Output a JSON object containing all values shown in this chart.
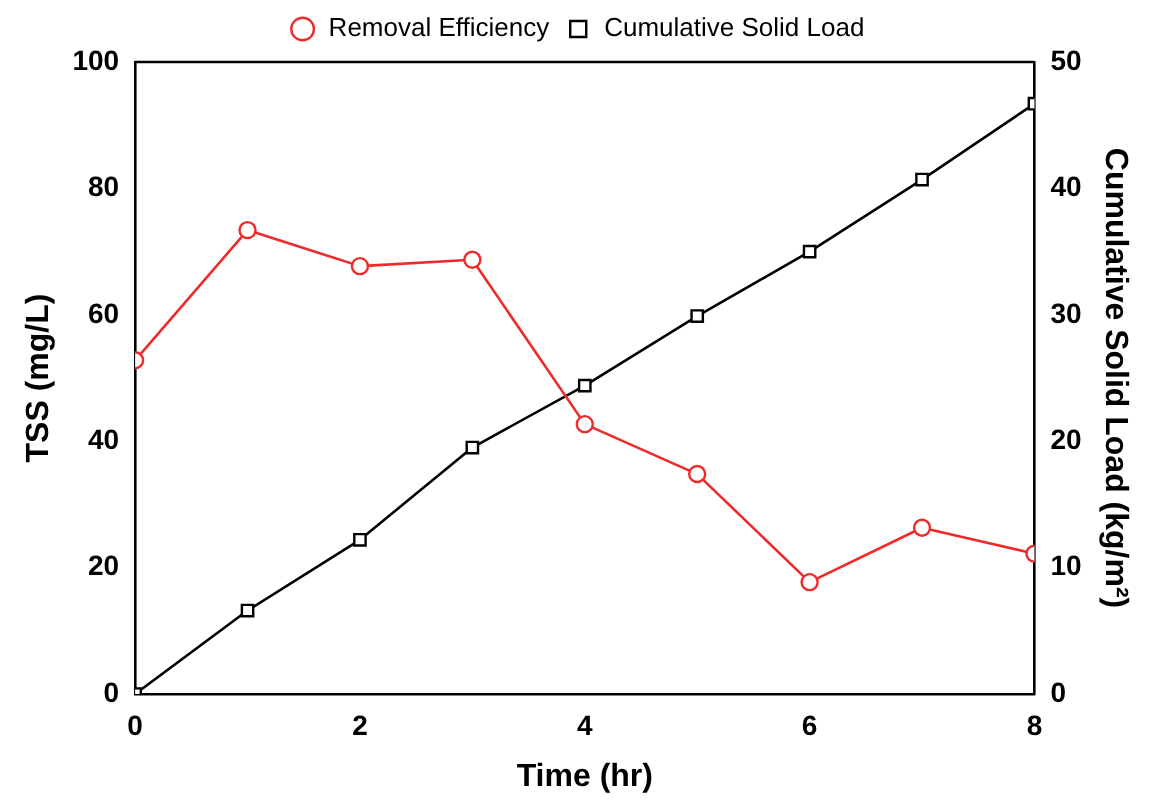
{
  "chart_data": {
    "type": "line",
    "xlabel": "Time (hr)",
    "ylabel": "TSS (mg/L)",
    "y2label": "Cumulative Solid Load (kg/m²)",
    "x": [
      0,
      1,
      2,
      3,
      4,
      5,
      6,
      7,
      8
    ],
    "series": [
      {
        "name": "Removal Efficiency",
        "color": "#ee2b2b",
        "marker": "circle",
        "values": [
          52.8,
          73.4,
          67.7,
          68.7,
          42.7,
          34.8,
          17.7,
          26.3,
          22.2
        ]
      },
      {
        "name": "Cumulative Solid Load",
        "color": "#000000",
        "marker": "square",
        "axis": "y2",
        "values": [
          0,
          6.6,
          12.2,
          19.5,
          24.4,
          29.9,
          35.0,
          40.7,
          46.7
        ]
      }
    ],
    "xlim": [
      0,
      8
    ],
    "xticks": [
      0,
      2,
      4,
      6,
      8
    ],
    "ylim": [
      0,
      100
    ],
    "yticks": [
      0,
      20,
      40,
      60,
      80,
      100
    ],
    "y2lim": [
      0,
      50
    ],
    "y2ticks": [
      0,
      10,
      20,
      30,
      40,
      50
    ],
    "grid": false,
    "legend": "top",
    "line_style": "solid"
  }
}
